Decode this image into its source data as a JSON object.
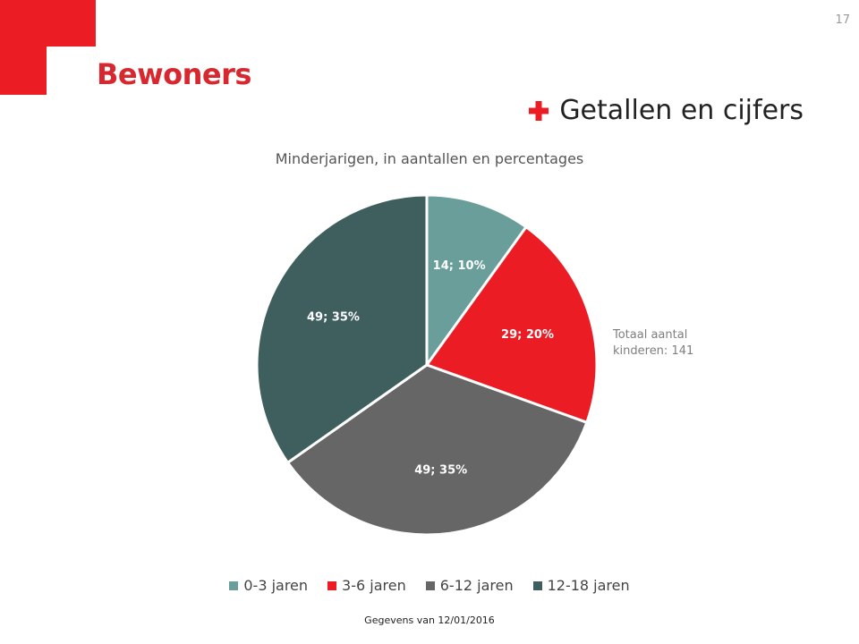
{
  "slide": {
    "page_number": "17",
    "title": "Bewoners",
    "section_heading": "Getallen en cijfers",
    "footer": "Gegevens van 12/01/2016",
    "accent_color": "#ec1c24"
  },
  "icons": {
    "section": "plus-icon"
  },
  "side_note": {
    "line1": "Totaal aantal",
    "line2": "kinderen: 141"
  },
  "chart_data": {
    "type": "pie",
    "title": "Minderjarigen, in aantallen en percentages",
    "slices": [
      {
        "label": "0-3 jaren",
        "value": 14,
        "percent": 10,
        "data_label": "14; 10%",
        "color": "#6a9e9b"
      },
      {
        "label": "3-6 jaren",
        "value": 29,
        "percent": 20,
        "data_label": "29; 20%",
        "color": "#ec1c24"
      },
      {
        "label": "6-12 jaren",
        "value": 49,
        "percent": 35,
        "data_label": "49; 35%",
        "color": "#666666"
      },
      {
        "label": "12-18 jaren",
        "value": 49,
        "percent": 35,
        "data_label": "49; 35%",
        "color": "#3f5f5f"
      }
    ],
    "total": 141,
    "legend_position": "bottom"
  }
}
